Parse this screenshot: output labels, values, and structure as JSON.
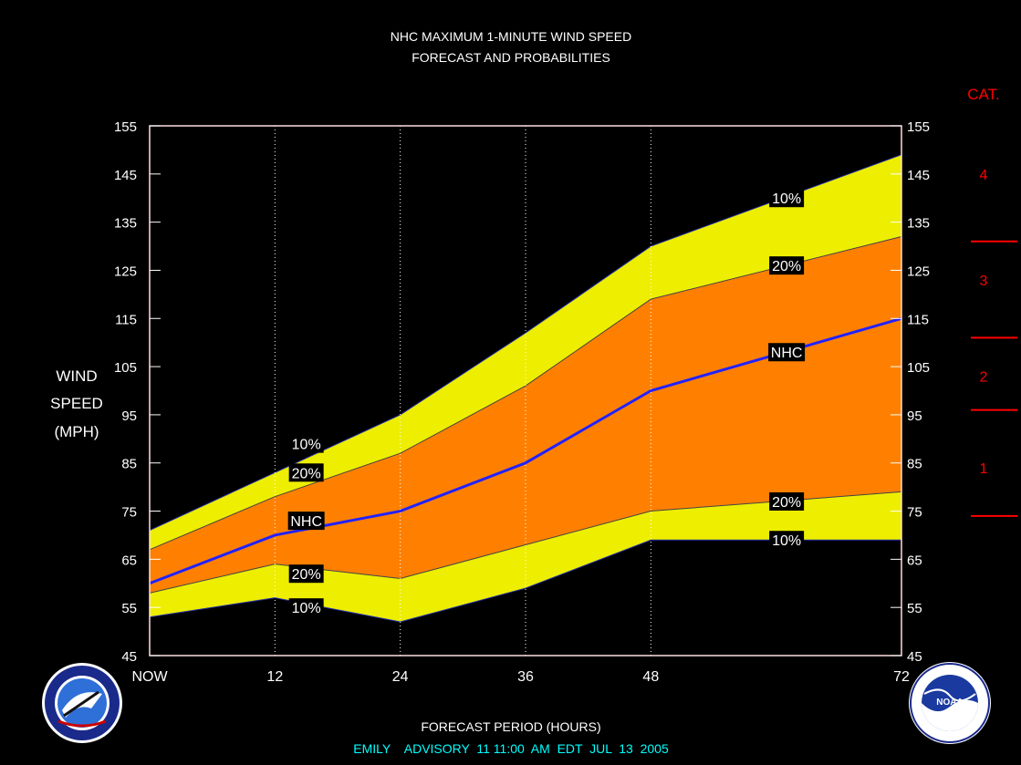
{
  "title_line1": "NHC MAXIMUM 1-MINUTE WIND SPEED",
  "title_line2": "FORECAST AND PROBABILITIES",
  "ylabel_lines": [
    "WIND",
    "SPEED",
    "(MPH)"
  ],
  "xlabel": "FORECAST PERIOD (HOURS)",
  "footer": "EMILY    ADVISORY  11 11:00  AM  EDT  JUL  13  2005",
  "cat_header": "CAT.",
  "categories": [
    {
      "label": "4",
      "mid_mph": 145
    },
    {
      "label": "3",
      "mid_mph": 123
    },
    {
      "label": "2",
      "mid_mph": 103
    },
    {
      "label": "1",
      "mid_mph": 84
    }
  ],
  "category_thresholds_mph": [
    74,
    96,
    111,
    131
  ],
  "colors": {
    "background": "#000000",
    "plot_bg": "#000000",
    "band_10": "#eeee00",
    "band_20": "#ff8000",
    "nhc_line": "#2222ff",
    "axis_text": "#ffffff",
    "cat_text": "#ff0000",
    "footer_text": "#00ffff"
  },
  "logos": {
    "left": {
      "name": "National Weather Service",
      "ring_text": "NATIONAL WEATHER SERVICE"
    },
    "right": {
      "name": "NOAA",
      "center_text": "NOAA",
      "ring_text": "NATIONAL OCEANIC AND ATMOSPHERIC ADMINISTRATION U.S. DEPARTMENT OF COMMERCE"
    }
  },
  "chart_data": {
    "type": "area",
    "x": [
      0,
      12,
      24,
      36,
      48,
      72
    ],
    "xlim": [
      0,
      72
    ],
    "ylim": [
      45,
      155
    ],
    "xticks": [
      0,
      12,
      24,
      36,
      48,
      72
    ],
    "xtick_labels": [
      "NOW",
      "12",
      "24",
      "36",
      "48",
      "72"
    ],
    "yticks": [
      45,
      55,
      65,
      75,
      85,
      95,
      105,
      115,
      125,
      135,
      145,
      155
    ],
    "series": [
      {
        "name": "10%",
        "role": "upper",
        "values": [
          71,
          83,
          95,
          112,
          130,
          149
        ]
      },
      {
        "name": "20%",
        "role": "upper",
        "values": [
          67,
          78,
          87,
          101,
          119,
          132
        ]
      },
      {
        "name": "NHC",
        "role": "forecast",
        "values": [
          60,
          70,
          75,
          85,
          100,
          115
        ]
      },
      {
        "name": "20%",
        "role": "lower",
        "values": [
          58,
          64,
          61,
          68,
          75,
          79
        ]
      },
      {
        "name": "10%",
        "role": "lower",
        "values": [
          53,
          57,
          52,
          59,
          69,
          69
        ]
      }
    ],
    "annotations": [
      {
        "text": "10%",
        "x": 15,
        "y": 89
      },
      {
        "text": "20%",
        "x": 15,
        "y": 83
      },
      {
        "text": "NHC",
        "x": 15,
        "y": 73
      },
      {
        "text": "20%",
        "x": 15,
        "y": 62
      },
      {
        "text": "10%",
        "x": 15,
        "y": 55
      },
      {
        "text": "10%",
        "x": 61,
        "y": 140
      },
      {
        "text": "20%",
        "x": 61,
        "y": 126
      },
      {
        "text": "NHC",
        "x": 61,
        "y": 108
      },
      {
        "text": "20%",
        "x": 61,
        "y": 77
      },
      {
        "text": "10%",
        "x": 61,
        "y": 69
      }
    ],
    "grid_x": "dotted"
  }
}
